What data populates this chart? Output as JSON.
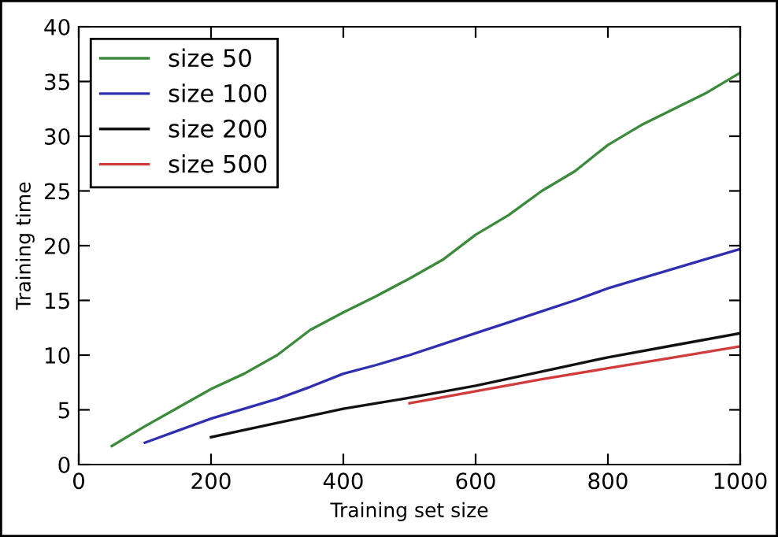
{
  "chart_data": {
    "type": "line",
    "xlabel": "Training set size",
    "ylabel": "Training time",
    "xlim": [
      0,
      1000
    ],
    "ylim": [
      0,
      40
    ],
    "xticks": [
      0,
      200,
      400,
      600,
      800,
      1000
    ],
    "yticks": [
      0,
      5,
      10,
      15,
      20,
      25,
      30,
      35,
      40
    ],
    "grid": false,
    "legend": "top left",
    "marker": "none",
    "line_style": "solid",
    "series": [
      {
        "name": "size 50",
        "color": "#3c8a3c",
        "x": [
          50,
          100,
          150,
          200,
          250,
          300,
          350,
          400,
          450,
          500,
          550,
          600,
          650,
          700,
          750,
          800,
          850,
          900,
          950,
          1000
        ],
        "values": [
          1.7,
          3.5,
          5.2,
          6.9,
          8.3,
          10,
          12.3,
          13.9,
          15.4,
          17,
          18.7,
          21,
          22.8,
          25,
          26.8,
          29.2,
          31,
          32.5,
          34,
          35.8
        ]
      },
      {
        "name": "size 100",
        "color": "#2f2fb0",
        "x": [
          100,
          150,
          200,
          250,
          300,
          350,
          400,
          450,
          500,
          550,
          600,
          650,
          700,
          750,
          800,
          850,
          900,
          950,
          1000
        ],
        "values": [
          2,
          3.1,
          4.2,
          5.1,
          6,
          7.1,
          8.3,
          9.1,
          10,
          11,
          12,
          13,
          14,
          15,
          16.1,
          17,
          17.9,
          18.8,
          19.7
        ]
      },
      {
        "name": "size 200",
        "color": "#111111",
        "x": [
          200,
          300,
          400,
          500,
          600,
          700,
          800,
          900,
          1000
        ],
        "values": [
          2.5,
          3.8,
          5.1,
          6.1,
          7.2,
          8.5,
          9.8,
          10.9,
          12
        ]
      },
      {
        "name": "size 500",
        "color": "#d03c3c",
        "x": [
          500,
          600,
          700,
          800,
          900,
          1000
        ],
        "values": [
          5.6,
          6.7,
          7.8,
          8.8,
          9.8,
          10.8
        ]
      }
    ]
  }
}
